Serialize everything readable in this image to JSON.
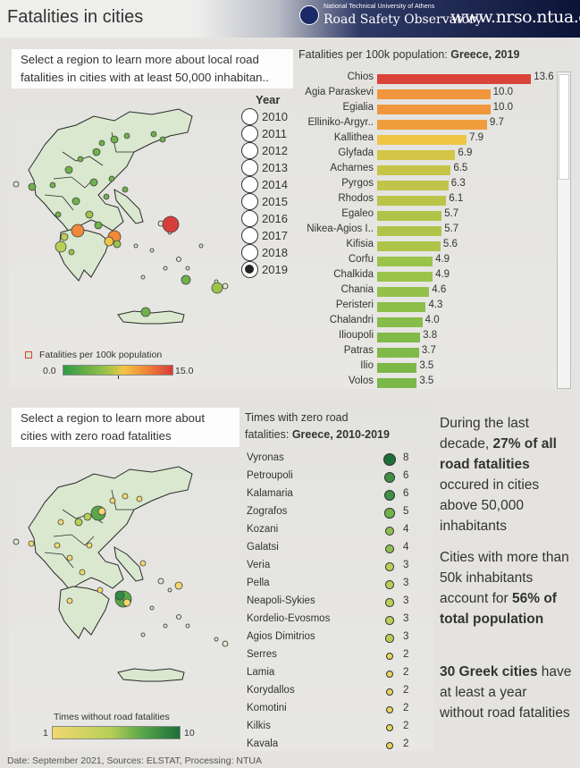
{
  "header": {
    "title": "Fatalities in cities",
    "logo_line1": "National Technical University of Athens",
    "logo_line2": "Road Safety Observatory",
    "url": "www.nrso.ntua.gr"
  },
  "top_panel": {
    "prompt": "Select a region to learn more about local road fatalities in cities with at least 50,000 inhabitan..",
    "legend_title": "Fatalities per 100k population",
    "legend_min": "0.0",
    "legend_max": "15.0",
    "legend_colors": [
      "#2f9a45",
      "#9cc44a",
      "#f1c545",
      "#f08a3a",
      "#d73a3a"
    ],
    "year_header": "Year",
    "years": [
      "2010",
      "2011",
      "2012",
      "2013",
      "2014",
      "2015",
      "2016",
      "2017",
      "2018",
      "2019"
    ],
    "selected_year": "2019",
    "chart_title_prefix": "Fatalities per 100k population: ",
    "chart_title_bold": "Greece, 2019"
  },
  "chart_data": {
    "type": "bar",
    "title": "Fatalities per 100k population: Greece, 2019",
    "categories": [
      "Chios",
      "Agia Paraskevi",
      "Egialia",
      "Elliniko-Argyr..",
      "Kallithea",
      "Glyfada",
      "Acharnes",
      "Pyrgos",
      "Rhodos",
      "Egaleo",
      "Nikea-Agios I..",
      "Kifisia",
      "Corfu",
      "Chalkida",
      "Chania",
      "Peristeri",
      "Chalandri",
      "Ilioupoli",
      "Patras",
      "Ilio",
      "Volos"
    ],
    "values": [
      13.6,
      10.0,
      10.0,
      9.7,
      7.9,
      6.9,
      6.5,
      6.3,
      6.1,
      5.7,
      5.7,
      5.6,
      4.9,
      4.9,
      4.6,
      4.3,
      4.0,
      3.8,
      3.7,
      3.5,
      3.5
    ],
    "labels": [
      "13.6",
      "10.0",
      "10.0",
      "9.7",
      "7.9",
      "6.9",
      "6.5",
      "6.3",
      "6.1",
      "5.7",
      "5.7",
      "5.6",
      "4.9",
      "4.9",
      "4.6",
      "4.3",
      "4.0",
      "3.8",
      "3.7",
      "3.5",
      "3.5"
    ],
    "xlim": [
      0,
      15
    ]
  },
  "bottom_panel": {
    "prompt": "Select a region to learn more about cities with  zero road fatalities",
    "legend_title": "Times without road fatalities",
    "legend_min": "1",
    "legend_max": "10",
    "legend_colors": [
      "#f1d870",
      "#b8cf58",
      "#5aa84a",
      "#1d6e3a"
    ],
    "list_title_line1": "Times with zero road",
    "list_title_prefix": "fatalities: ",
    "list_title_bold": "Greece, 2010-2019",
    "cities": [
      {
        "name": "Vyronas",
        "value": "8",
        "n": 8
      },
      {
        "name": "Petroupoli",
        "value": "6",
        "n": 6
      },
      {
        "name": "Kalamaria",
        "value": "6",
        "n": 6
      },
      {
        "name": "Zografos",
        "value": "5",
        "n": 5
      },
      {
        "name": "Kozani",
        "value": "4",
        "n": 4
      },
      {
        "name": "Galatsi",
        "value": "4",
        "n": 4
      },
      {
        "name": "Veria",
        "value": "3",
        "n": 3
      },
      {
        "name": "Pella",
        "value": "3",
        "n": 3
      },
      {
        "name": "Neapoli-Sykies",
        "value": "3",
        "n": 3
      },
      {
        "name": "Kordelio-Evosmos",
        "value": "3",
        "n": 3
      },
      {
        "name": "Agios Dimitrios",
        "value": "3",
        "n": 3
      },
      {
        "name": "Serres",
        "value": "2",
        "n": 2
      },
      {
        "name": "Lamia",
        "value": "2",
        "n": 2
      },
      {
        "name": "Korydallos",
        "value": "2",
        "n": 2
      },
      {
        "name": "Komotini",
        "value": "2",
        "n": 2
      },
      {
        "name": "Kilkis",
        "value": "2",
        "n": 2
      },
      {
        "name": "Kavala",
        "value": "2",
        "n": 2
      }
    ]
  },
  "stats": {
    "s1_a": "During the last decade, ",
    "s1_b": "27% of all road fatalities",
    "s1_c": " occured in cities above 50,000 inhabitants",
    "s2_a": "Cities with more than 50k inhabitants account for ",
    "s2_b": "56% of total population",
    "s3_a": "30 Greek cities",
    "s3_b": " have at least a year without road fatalities"
  },
  "footer": "Date: September 2021, Sources: ELSTAT, Processing: NTUA"
}
